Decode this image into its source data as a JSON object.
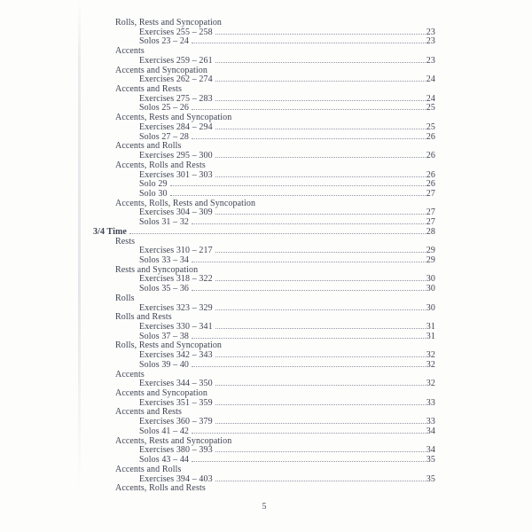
{
  "page": {
    "background_color": "#fdfdfc",
    "text_color": "#3f4352",
    "leader_dot_color": "#9296a3",
    "folio": "5"
  },
  "toc": {
    "entries": [
      {
        "level": "section",
        "label": "Rolls, Rests and Syncopation"
      },
      {
        "level": "item",
        "label": "Exercises 255 – 258",
        "page": "23"
      },
      {
        "level": "item",
        "label": "Solos 23 – 24",
        "page": "23"
      },
      {
        "level": "section",
        "label": "Accents"
      },
      {
        "level": "item",
        "label": "Exercises 259 – 261",
        "page": "23"
      },
      {
        "level": "section",
        "label": "Accents and Syncopation"
      },
      {
        "level": "item",
        "label": "Exercises 262 – 274",
        "page": "24"
      },
      {
        "level": "section",
        "label": "Accents and Rests"
      },
      {
        "level": "item",
        "label": "Exercises 275 – 283",
        "page": "24"
      },
      {
        "level": "item",
        "label": "Solos 25 – 26",
        "page": "25"
      },
      {
        "level": "section",
        "label": "Accents, Rests and Syncopation"
      },
      {
        "level": "item",
        "label": "Exercises 284 – 294",
        "page": "25"
      },
      {
        "level": "item",
        "label": "Solos 27 – 28",
        "page": "26"
      },
      {
        "level": "section",
        "label": "Accents and Rolls"
      },
      {
        "level": "item",
        "label": "Exercises 295 – 300",
        "page": "26"
      },
      {
        "level": "section",
        "label": "Accents, Rolls and Rests"
      },
      {
        "level": "item",
        "label": "Exercises 301 – 303",
        "page": "26"
      },
      {
        "level": "item",
        "label": "Solo 29",
        "page": "26"
      },
      {
        "level": "item",
        "label": "Solo 30",
        "page": "27"
      },
      {
        "level": "section",
        "label": "Accents, Rolls, Rests and Syncopation"
      },
      {
        "level": "item",
        "label": "Exercises 304 – 309",
        "page": "27"
      },
      {
        "level": "item",
        "label": "Solos 31 – 32",
        "page": "27"
      },
      {
        "level": "chapter",
        "label": "3/4 Time",
        "page": "28"
      },
      {
        "level": "section",
        "label": "Rests"
      },
      {
        "level": "item",
        "label": "Exercises 310 – 217",
        "page": "29"
      },
      {
        "level": "item",
        "label": "Solos 33 – 34",
        "page": "29"
      },
      {
        "level": "section",
        "label": "Rests and Syncopation"
      },
      {
        "level": "item",
        "label": "Exercises 318 – 322",
        "page": "30"
      },
      {
        "level": "item",
        "label": "Solos 35 – 36",
        "page": "30"
      },
      {
        "level": "section",
        "label": "Rolls"
      },
      {
        "level": "item",
        "label": "Exercises 323 – 329",
        "page": "30"
      },
      {
        "level": "section",
        "label": "Rolls and Rests"
      },
      {
        "level": "item",
        "label": "Exercises 330 – 341",
        "page": "31"
      },
      {
        "level": "item",
        "label": "Solos 37 – 38",
        "page": "31"
      },
      {
        "level": "section",
        "label": "Rolls, Rests and Syncopation"
      },
      {
        "level": "item",
        "label": "Exercises 342 – 343",
        "page": "32"
      },
      {
        "level": "item",
        "label": "Solos 39 – 40",
        "page": "32"
      },
      {
        "level": "section",
        "label": "Accents"
      },
      {
        "level": "item",
        "label": "Exercises 344 – 350",
        "page": "32"
      },
      {
        "level": "section",
        "label": "Accents and Syncopation"
      },
      {
        "level": "item",
        "label": "Exercises 351 – 359",
        "page": "33"
      },
      {
        "level": "section",
        "label": "Accents and Rests"
      },
      {
        "level": "item",
        "label": "Exercises 360 – 379",
        "page": "33"
      },
      {
        "level": "item",
        "label": "Solos 41 – 42",
        "page": "34"
      },
      {
        "level": "section",
        "label": "Accents, Rests and Syncopation"
      },
      {
        "level": "item",
        "label": "Exercises 380 – 393",
        "page": "34"
      },
      {
        "level": "item",
        "label": "Solos 43 – 44",
        "page": "35"
      },
      {
        "level": "section",
        "label": "Accents and Rolls"
      },
      {
        "level": "item",
        "label": "Exercises 394 – 403",
        "page": "35"
      },
      {
        "level": "section",
        "label": "Accents, Rolls and Rests"
      }
    ]
  }
}
